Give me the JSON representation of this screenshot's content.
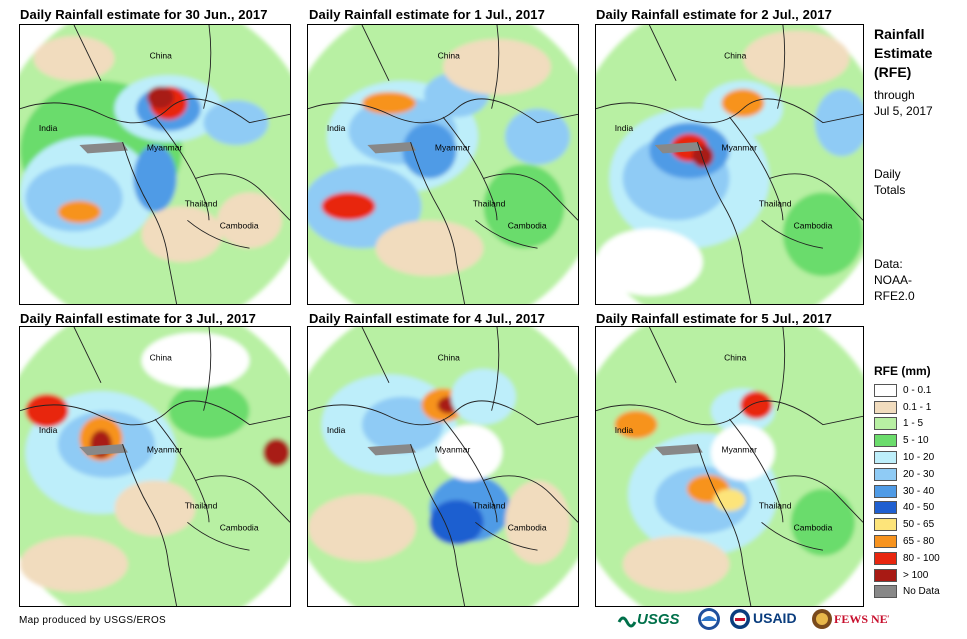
{
  "panels": [
    {
      "title": "Daily Rainfall estimate for 30 Jun., 2017"
    },
    {
      "title": "Daily Rainfall estimate for 1 Jul., 2017"
    },
    {
      "title": "Daily Rainfall estimate for 2 Jul., 2017"
    },
    {
      "title": "Daily Rainfall estimate for 3 Jul., 2017"
    },
    {
      "title": "Daily Rainfall estimate for 4 Jul., 2017"
    },
    {
      "title": "Daily Rainfall estimate for 5 Jul., 2017"
    }
  ],
  "map_labels": {
    "china": "China",
    "india": "India",
    "myanmar": "Myanmar",
    "thailand": "Thailand",
    "cambodia": "Cambodia"
  },
  "side": {
    "title_line1": "Rainfall",
    "title_line2": "Estimate",
    "title_line3": "(RFE)",
    "through": "through",
    "date": "Jul 5, 2017",
    "daily": "Daily",
    "totals": "Totals",
    "data_label": "Data:",
    "source1": "NOAA-",
    "source2": "RFE2.0"
  },
  "legend": {
    "title": "RFE (mm)",
    "items": [
      {
        "label": "0 - 0.1",
        "color": "#ffffff"
      },
      {
        "label": "0.1 - 1",
        "color": "#f1dcbe"
      },
      {
        "label": "1 - 5",
        "color": "#b8f0a3"
      },
      {
        "label": "5 - 10",
        "color": "#6bdc6c"
      },
      {
        "label": "10 - 20",
        "color": "#bdeefa"
      },
      {
        "label": "20 - 30",
        "color": "#8fcbf5"
      },
      {
        "label": "30 - 40",
        "color": "#4f9be6"
      },
      {
        "label": "40 - 50",
        "color": "#1f5fd0"
      },
      {
        "label": "50 - 65",
        "color": "#fde47a"
      },
      {
        "label": "65 - 80",
        "color": "#f7931e"
      },
      {
        "label": "80 - 100",
        "color": "#e8260f"
      },
      {
        "label": "> 100",
        "color": "#a81a14"
      },
      {
        "label": "No Data",
        "color": "#888888"
      }
    ]
  },
  "credit": "Map produced by USGS/EROS",
  "logos": {
    "usgs": "USGS",
    "usaid": "USAID",
    "fews": "FEWS NET"
  }
}
